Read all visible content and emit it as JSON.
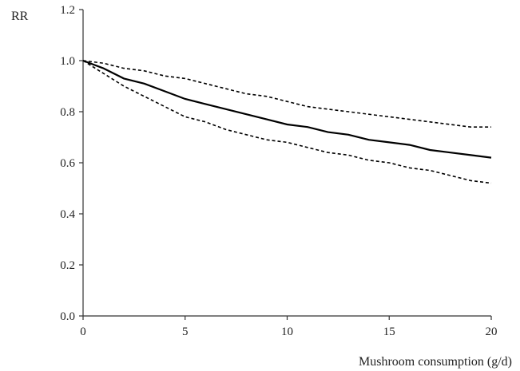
{
  "chart_data": {
    "type": "line",
    "title": "",
    "xlabel": "Mushroom consumption (g/d)",
    "ylabel": "RR",
    "xlim": [
      0,
      20
    ],
    "ylim": [
      0.0,
      1.2
    ],
    "x_ticks": [
      0,
      5,
      10,
      15,
      20
    ],
    "x_tick_labels": [
      "0",
      "5",
      "10",
      "15",
      "20"
    ],
    "y_ticks": [
      0.0,
      0.2,
      0.4,
      0.6,
      0.8,
      1.0,
      1.2
    ],
    "y_tick_labels": [
      "0.0",
      "0.2",
      "0.4",
      "0.6",
      "0.8",
      "1.0",
      "1.2"
    ],
    "grid": false,
    "legend": "none",
    "x": [
      0,
      1,
      2,
      3,
      4,
      5,
      6,
      7,
      8,
      9,
      10,
      11,
      12,
      13,
      14,
      15,
      16,
      17,
      18,
      19,
      20
    ],
    "series": [
      {
        "style": "solid",
        "color": "#000000",
        "values": [
          1.0,
          0.97,
          0.93,
          0.91,
          0.88,
          0.85,
          0.83,
          0.81,
          0.79,
          0.77,
          0.75,
          0.74,
          0.72,
          0.71,
          0.69,
          0.68,
          0.67,
          0.65,
          0.64,
          0.63,
          0.62
        ]
      },
      {
        "style": "dashed",
        "color": "#000000",
        "values": [
          1.0,
          0.99,
          0.97,
          0.96,
          0.94,
          0.93,
          0.91,
          0.89,
          0.87,
          0.86,
          0.84,
          0.82,
          0.81,
          0.8,
          0.79,
          0.78,
          0.77,
          0.76,
          0.75,
          0.74,
          0.74
        ]
      },
      {
        "style": "dashed",
        "color": "#000000",
        "values": [
          1.0,
          0.95,
          0.9,
          0.86,
          0.82,
          0.78,
          0.76,
          0.73,
          0.71,
          0.69,
          0.68,
          0.66,
          0.64,
          0.63,
          0.61,
          0.6,
          0.58,
          0.57,
          0.55,
          0.53,
          0.52
        ]
      }
    ]
  }
}
